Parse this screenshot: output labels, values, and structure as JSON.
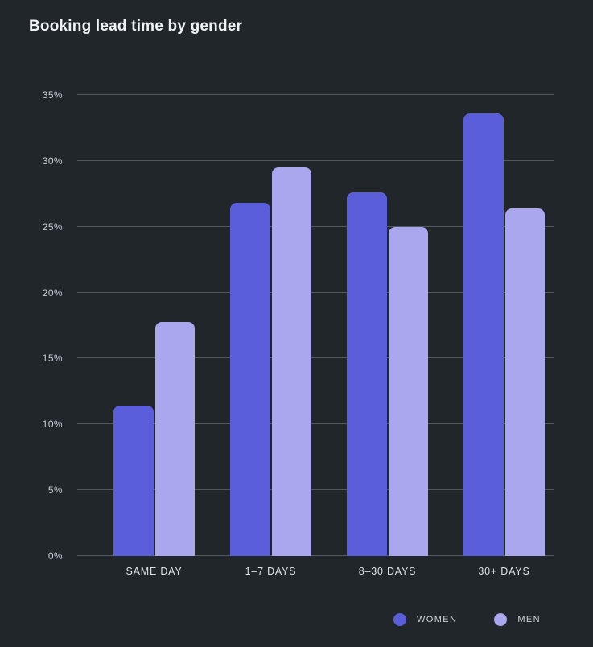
{
  "page": {
    "background": "#21262b",
    "title_color": "#f0f3f5"
  },
  "chart_data": {
    "type": "bar",
    "title": "Booking lead time by gender",
    "categories": [
      "SAME DAY",
      "1–7 DAYS",
      "8–30 DAYS",
      "30+ DAYS"
    ],
    "series": [
      {
        "name": "WOMEN",
        "color": "#5a5edb",
        "values": [
          11.4,
          26.8,
          27.6,
          33.6
        ]
      },
      {
        "name": "MEN",
        "color": "#aaa7ef",
        "values": [
          17.8,
          29.5,
          25.0,
          26.4
        ]
      }
    ],
    "xlabel": "",
    "ylabel": "",
    "ylim": [
      0,
      35
    ],
    "ytick_step": 5,
    "ytick_suffix": "%",
    "grid": true,
    "gridline_color": "#53585e",
    "ytick_color": "#c7ccd3",
    "xtick_color": "#dde1e6",
    "legend_position": "bottom-right",
    "legend_text_color": "#ccd1d8"
  }
}
